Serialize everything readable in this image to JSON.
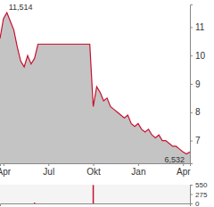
{
  "chart_data": [
    {
      "type": "area",
      "color": "#c8102e",
      "x": [
        0,
        1,
        2,
        3,
        4,
        5,
        6,
        7,
        8,
        9,
        10,
        11,
        12,
        13,
        14,
        15,
        16,
        17,
        18,
        19,
        20,
        21,
        22,
        23,
        24,
        25,
        26,
        27,
        28,
        29,
        30,
        31,
        32,
        33,
        34,
        35,
        36,
        37,
        38,
        39,
        40,
        41,
        42,
        43,
        44,
        45,
        46,
        47,
        48,
        49,
        50,
        51,
        52,
        53,
        54,
        55
      ],
      "values": [
        10.6,
        11.3,
        11.514,
        11.2,
        10.9,
        10.3,
        9.8,
        9.6,
        10.0,
        9.7,
        9.9,
        10.4,
        10.4,
        10.4,
        10.4,
        10.4,
        10.4,
        10.4,
        10.4,
        10.4,
        10.4,
        10.4,
        10.4,
        10.4,
        10.4,
        10.4,
        10.4,
        8.2,
        8.9,
        8.7,
        8.4,
        8.5,
        8.2,
        8.1,
        8.0,
        7.9,
        7.8,
        7.9,
        7.6,
        7.5,
        7.6,
        7.4,
        7.3,
        7.4,
        7.2,
        7.1,
        7.2,
        7.0,
        7.0,
        6.9,
        6.8,
        6.8,
        6.7,
        6.6,
        6.532,
        6.6
      ],
      "xlim": [
        0,
        55
      ],
      "xticks": [
        {
          "value": 1,
          "label": "Apr"
        },
        {
          "value": 14,
          "label": "Jul"
        },
        {
          "value": 27,
          "label": "Okt"
        },
        {
          "value": 40,
          "label": "Jan"
        },
        {
          "value": 53,
          "label": "Apr"
        }
      ],
      "ylim": [
        6.2,
        11.8
      ],
      "yticks": [
        7,
        8,
        9,
        10,
        11
      ],
      "annotations": [
        {
          "text": "11,514",
          "x": 2,
          "y": 11.514
        },
        {
          "text": "6,532",
          "x": 54,
          "y": 6.532
        }
      ],
      "grid": false
    },
    {
      "type": "bar",
      "color": "#c8102e",
      "x": [
        0,
        1,
        2,
        3,
        4,
        5,
        6,
        7,
        8,
        9,
        10,
        11,
        12,
        13,
        14,
        15,
        16,
        17,
        18,
        19,
        20,
        21,
        22,
        23,
        24,
        25,
        26,
        27,
        28,
        29,
        30,
        31,
        32,
        33,
        34,
        35,
        36,
        37,
        38,
        39,
        40,
        41,
        42,
        43,
        44,
        45,
        46,
        47,
        48,
        49,
        50,
        51,
        52,
        53,
        54,
        55
      ],
      "values": [
        0,
        0,
        0,
        0,
        0,
        0,
        0,
        0,
        0,
        0,
        25,
        0,
        0,
        0,
        0,
        0,
        0,
        0,
        0,
        0,
        0,
        0,
        0,
        0,
        0,
        0,
        0,
        540,
        0,
        0,
        0,
        0,
        0,
        0,
        0,
        0,
        0,
        0,
        0,
        0,
        0,
        0,
        0,
        0,
        0,
        0,
        0,
        0,
        0,
        0,
        0,
        0,
        0,
        0,
        0,
        0
      ],
      "xlim": [
        0,
        55
      ],
      "ylim": [
        0,
        550
      ],
      "yticks": [
        0,
        275,
        550
      ],
      "tick_labels": "y",
      "grid": false
    }
  ]
}
